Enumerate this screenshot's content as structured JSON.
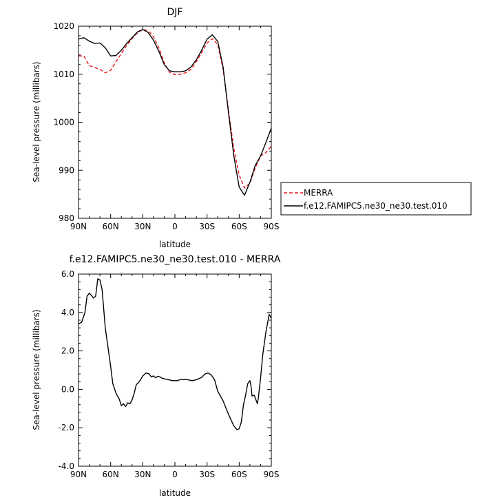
{
  "chart_data": [
    {
      "type": "line",
      "title": "DJF",
      "xlabel": "latitude",
      "ylabel": "Sea-level pressure (millibars)",
      "xlim": [
        90,
        -90
      ],
      "ylim": [
        980,
        1020
      ],
      "x_ticks": [
        "90N",
        "60N",
        "30N",
        "0",
        "30S",
        "60S",
        "90S"
      ],
      "y_ticks": [
        "980",
        "990",
        "1000",
        "1010",
        "1020"
      ],
      "legend_position": "right",
      "series": [
        {
          "name": "MERRA",
          "color": "#e8141c",
          "dash": "dashed",
          "points": [
            [
              90,
              1013.8
            ],
            [
              85,
              1013.8
            ],
            [
              80,
              1011.8
            ],
            [
              75,
              1011.4
            ],
            [
              70,
              1011
            ],
            [
              65,
              1010.3
            ],
            [
              60,
              1010.8
            ],
            [
              55,
              1012.6
            ],
            [
              50,
              1014.3
            ],
            [
              45,
              1016
            ],
            [
              40,
              1017.4
            ],
            [
              35,
              1018.6
            ],
            [
              30,
              1019.3
            ],
            [
              25,
              1019.1
            ],
            [
              20,
              1017.8
            ],
            [
              15,
              1015.5
            ],
            [
              10,
              1012.4
            ],
            [
              5,
              1010.4
            ],
            [
              0,
              1009.9
            ],
            [
              -5,
              1010
            ],
            [
              -10,
              1010.3
            ],
            [
              -15,
              1011
            ],
            [
              -20,
              1012.6
            ],
            [
              -25,
              1014.5
            ],
            [
              -30,
              1016.5
            ],
            [
              -35,
              1017.4
            ],
            [
              -40,
              1016.2
            ],
            [
              -45,
              1011
            ],
            [
              -50,
              1002.5
            ],
            [
              -55,
              994.5
            ],
            [
              -60,
              989
            ],
            [
              -65,
              986.3
            ],
            [
              -70,
              987.3
            ],
            [
              -75,
              990.5
            ],
            [
              -80,
              993
            ],
            [
              -85,
              993.7
            ],
            [
              -90,
              995
            ]
          ]
        },
        {
          "name": "f.e12.FAMIPC5.ne30_ne30.test.010",
          "color": "#000000",
          "dash": "solid",
          "points": [
            [
              90,
              1017.3
            ],
            [
              85,
              1017.6
            ],
            [
              80,
              1016.9
            ],
            [
              75,
              1016.4
            ],
            [
              70,
              1016.5
            ],
            [
              65,
              1015.5
            ],
            [
              60,
              1013.8
            ],
            [
              55,
              1013.9
            ],
            [
              50,
              1015
            ],
            [
              45,
              1016.4
            ],
            [
              40,
              1017.6
            ],
            [
              35,
              1018.8
            ],
            [
              30,
              1019.3
            ],
            [
              25,
              1018.7
            ],
            [
              20,
              1017.1
            ],
            [
              15,
              1014.8
            ],
            [
              10,
              1012
            ],
            [
              5,
              1010.7
            ],
            [
              0,
              1010.5
            ],
            [
              -5,
              1010.5
            ],
            [
              -10,
              1010.7
            ],
            [
              -15,
              1011.5
            ],
            [
              -20,
              1013
            ],
            [
              -25,
              1015
            ],
            [
              -30,
              1017.3
            ],
            [
              -35,
              1018.2
            ],
            [
              -40,
              1016.8
            ],
            [
              -45,
              1011.5
            ],
            [
              -50,
              1002
            ],
            [
              -55,
              993
            ],
            [
              -60,
              986.5
            ],
            [
              -65,
              984.8
            ],
            [
              -70,
              987.5
            ],
            [
              -75,
              991
            ],
            [
              -80,
              993
            ],
            [
              -85,
              995.8
            ],
            [
              -90,
              998.8
            ]
          ]
        }
      ]
    },
    {
      "type": "line",
      "title": "f.e12.FAMIPC5.ne30_ne30.test.010 - MERRA",
      "xlabel": "latitude",
      "ylabel": "Sea-level pressure (millibars)",
      "xlim": [
        90,
        -90
      ],
      "ylim": [
        -4,
        6
      ],
      "x_ticks": [
        "90N",
        "60N",
        "30N",
        "0",
        "30S",
        "60S",
        "90S"
      ],
      "y_ticks": [
        "-4.0",
        "-2.0",
        "0.0",
        "2.0",
        "4.0",
        "6.0"
      ],
      "series": [
        {
          "color": "#000000",
          "dash": "solid",
          "points": [
            [
              90,
              3.4
            ],
            [
              87,
              3.5
            ],
            [
              84,
              4.0
            ],
            [
              82,
              4.85
            ],
            [
              80,
              5.0
            ],
            [
              78,
              4.9
            ],
            [
              76,
              4.75
            ],
            [
              74,
              4.85
            ],
            [
              72,
              5.75
            ],
            [
              70,
              5.7
            ],
            [
              68,
              5.2
            ],
            [
              65,
              3.2
            ],
            [
              62,
              2.0
            ],
            [
              60,
              1.2
            ],
            [
              58,
              0.3
            ],
            [
              55,
              -0.2
            ],
            [
              52,
              -0.5
            ],
            [
              50,
              -0.85
            ],
            [
              48,
              -0.75
            ],
            [
              46,
              -0.9
            ],
            [
              44,
              -0.7
            ],
            [
              42,
              -0.75
            ],
            [
              40,
              -0.55
            ],
            [
              38,
              -0.2
            ],
            [
              36,
              0.25
            ],
            [
              34,
              0.35
            ],
            [
              32,
              0.5
            ],
            [
              30,
              0.7
            ],
            [
              27,
              0.85
            ],
            [
              24,
              0.8
            ],
            [
              22,
              0.65
            ],
            [
              20,
              0.7
            ],
            [
              18,
              0.6
            ],
            [
              16,
              0.68
            ],
            [
              14,
              0.65
            ],
            [
              12,
              0.58
            ],
            [
              10,
              0.55
            ],
            [
              6,
              0.5
            ],
            [
              2,
              0.45
            ],
            [
              -2,
              0.45
            ],
            [
              -6,
              0.52
            ],
            [
              -8,
              0.5
            ],
            [
              -10,
              0.52
            ],
            [
              -12,
              0.5
            ],
            [
              -16,
              0.45
            ],
            [
              -20,
              0.5
            ],
            [
              -25,
              0.62
            ],
            [
              -28,
              0.8
            ],
            [
              -31,
              0.85
            ],
            [
              -34,
              0.75
            ],
            [
              -37,
              0.5
            ],
            [
              -40,
              -0.1
            ],
            [
              -45,
              -0.6
            ],
            [
              -50,
              -1.3
            ],
            [
              -55,
              -1.9
            ],
            [
              -58,
              -2.1
            ],
            [
              -60,
              -2.05
            ],
            [
              -62,
              -1.7
            ],
            [
              -64,
              -0.8
            ],
            [
              -66,
              -0.3
            ],
            [
              -68,
              0.3
            ],
            [
              -70,
              0.45
            ],
            [
              -71,
              0.2
            ],
            [
              -72,
              -0.35
            ],
            [
              -74,
              -0.3
            ],
            [
              -76,
              -0.6
            ],
            [
              -77,
              -0.75
            ],
            [
              -78,
              -0.4
            ],
            [
              -80,
              0.6
            ],
            [
              -82,
              1.8
            ],
            [
              -85,
              3.0
            ],
            [
              -88,
              3.9
            ],
            [
              -90,
              3.7
            ]
          ]
        }
      ]
    }
  ]
}
